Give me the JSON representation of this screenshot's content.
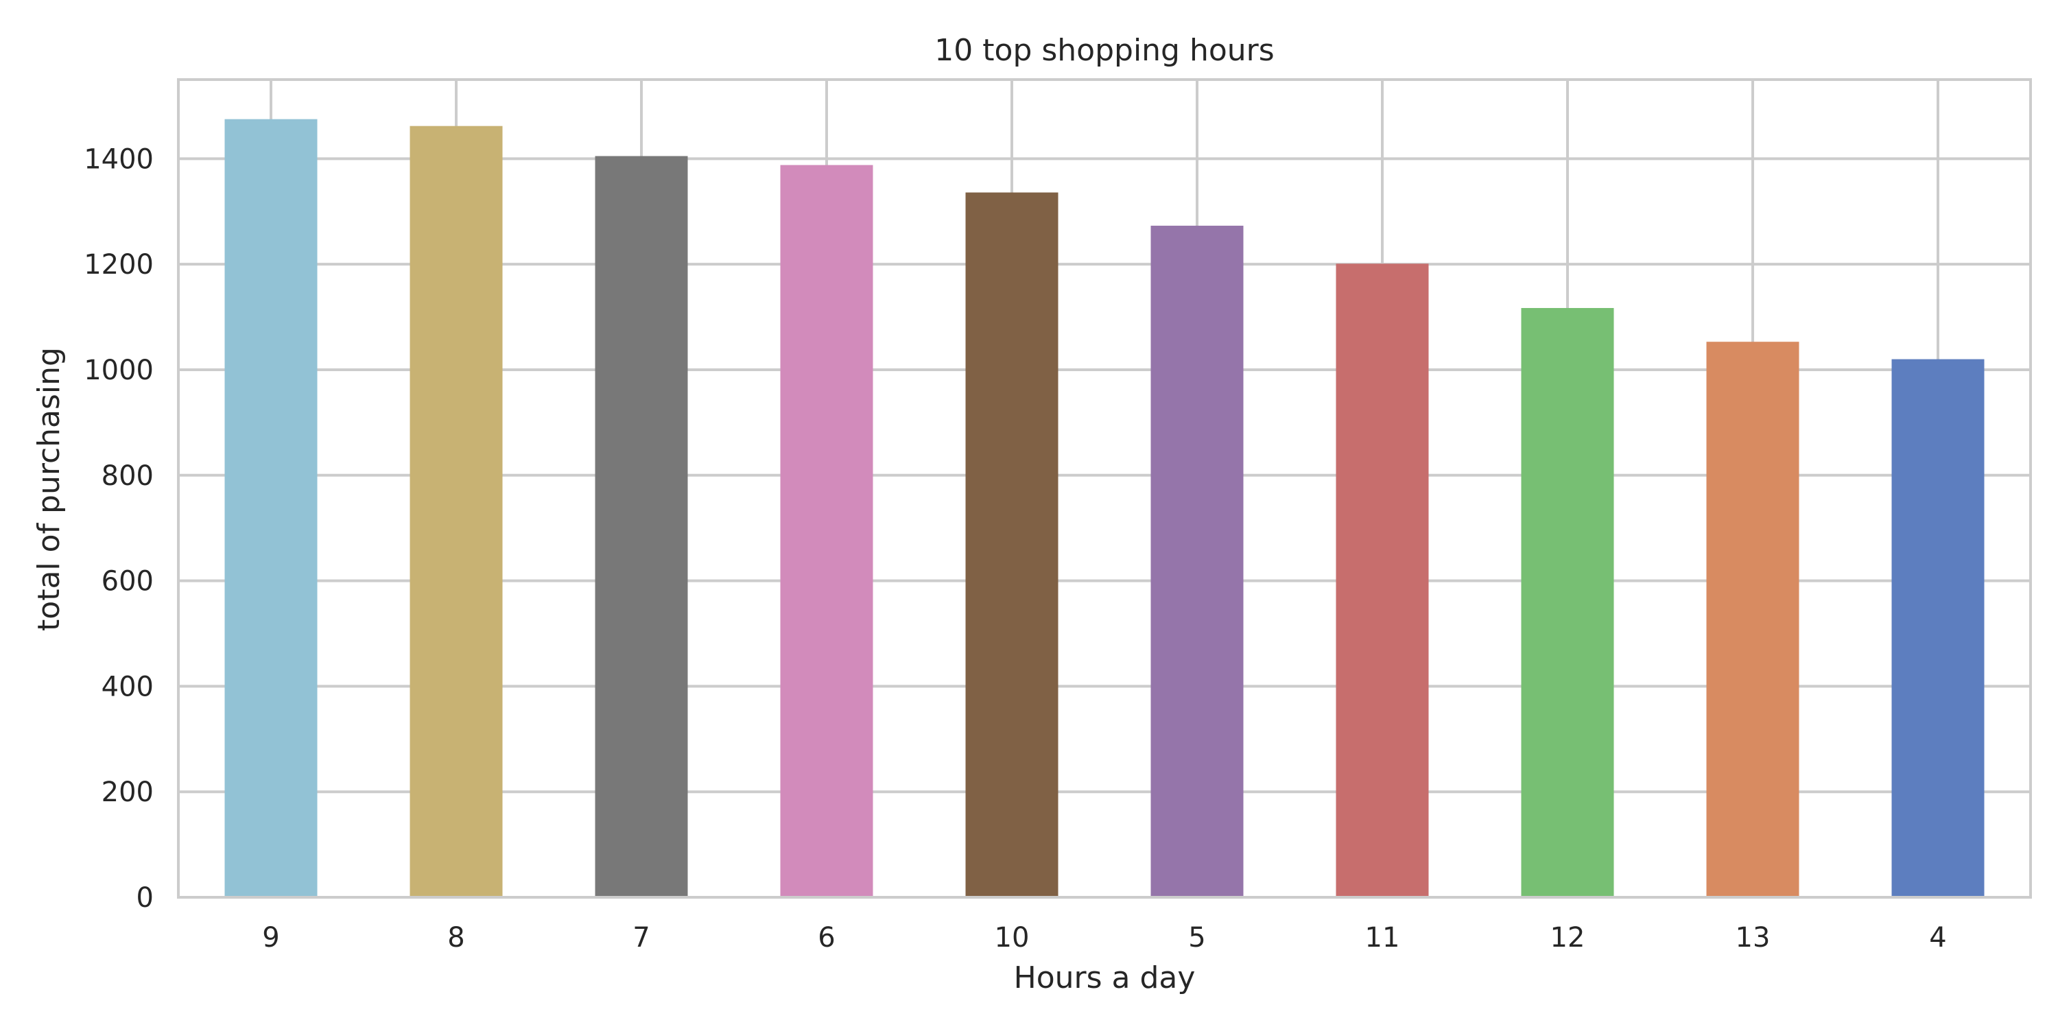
{
  "chart_data": {
    "type": "bar",
    "title": "10 top shopping hours",
    "xlabel": "Hours a day",
    "ylabel": "total of purchasing",
    "categories": [
      "9",
      "8",
      "7",
      "6",
      "10",
      "5",
      "11",
      "12",
      "13",
      "4"
    ],
    "values": [
      1475,
      1462,
      1405,
      1388,
      1336,
      1273,
      1201,
      1117,
      1053,
      1020
    ],
    "colors": [
      "#92c2d5",
      "#c8b273",
      "#787878",
      "#d28bbb",
      "#806145",
      "#9575aa",
      "#c76e6d",
      "#77bf73",
      "#d88b61",
      "#5d7ebf"
    ],
    "ylim": [
      0,
      1550
    ],
    "yticks": [
      0,
      200,
      400,
      600,
      800,
      1000,
      1200,
      1400
    ],
    "grid": true,
    "legend": "none"
  }
}
